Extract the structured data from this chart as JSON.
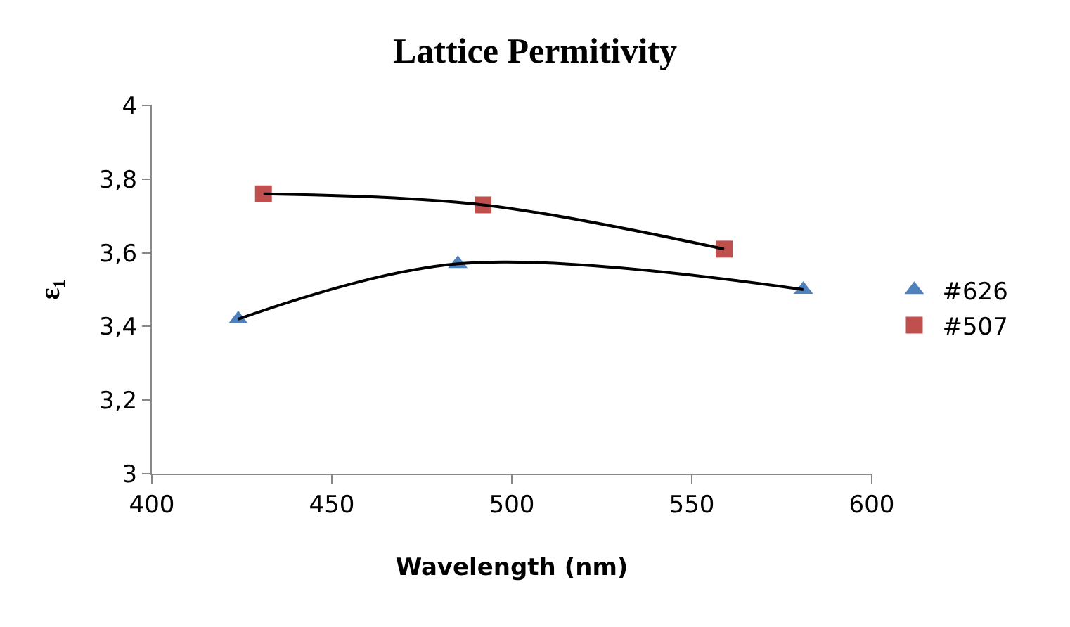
{
  "chart_data": {
    "type": "scatter",
    "title": "Lattice Permitivity",
    "xlabel": "Wavelength (nm)",
    "ylabel": "ε₁",
    "xlim": [
      400,
      600
    ],
    "xticks": [
      400,
      450,
      500,
      550,
      600
    ],
    "ylim": [
      3,
      4
    ],
    "yticks": [
      3,
      {
        "value": 3.2,
        "label": "3,2"
      },
      {
        "value": 3.4,
        "label": "3,4"
      },
      {
        "value": 3.6,
        "label": "3,6"
      },
      {
        "value": 3.8,
        "label": "3,8"
      },
      4
    ],
    "grid": false,
    "legend": "right",
    "series": [
      {
        "name": "#626",
        "color": "#4f81bd",
        "marker": "triangle",
        "x": [
          424,
          485,
          581
        ],
        "values": [
          3.42,
          3.57,
          3.5
        ]
      },
      {
        "name": "#507",
        "color": "#c0504d",
        "marker": "square",
        "x": [
          431,
          492,
          559
        ],
        "values": [
          3.76,
          3.73,
          3.61
        ]
      },
      {
        "color": "#000000",
        "type": "line",
        "marker": "none",
        "line_style": "solid",
        "x": [
          424,
          485,
          581
        ],
        "values": [
          3.42,
          3.57,
          3.5
        ]
      },
      {
        "color": "#000000",
        "type": "line",
        "marker": "none",
        "line_style": "solid",
        "x": [
          431,
          492,
          559
        ],
        "values": [
          3.76,
          3.73,
          3.61
        ]
      }
    ]
  }
}
